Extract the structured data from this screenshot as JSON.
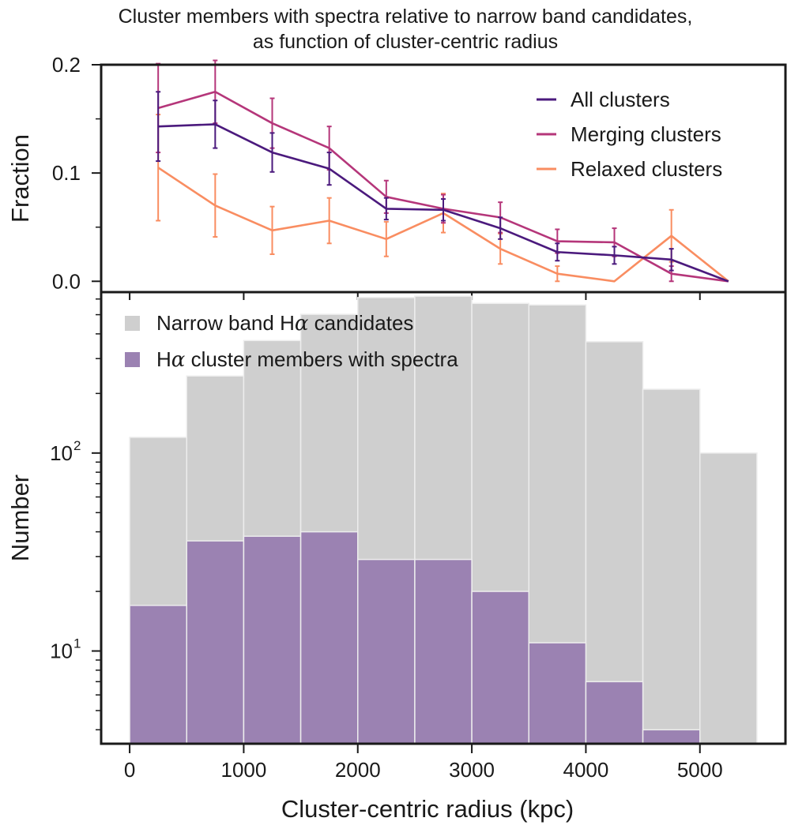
{
  "title": {
    "line1": "Cluster members with spectra relative to narrow band candidates,",
    "line2": "as function of cluster-centric radius"
  },
  "chart_data": [
    {
      "type": "line",
      "panel": "top",
      "ylabel": "Fraction",
      "xlabel": "",
      "xlim": [
        -250,
        5750
      ],
      "ylim": [
        -0.01,
        0.2
      ],
      "yticks": [
        0.0,
        0.1,
        0.2
      ],
      "ytick_labels": [
        "0.0",
        "0.1",
        "0.2"
      ],
      "legend_position": "top-right",
      "x": [
        250,
        750,
        1250,
        1750,
        2250,
        2750,
        3250,
        3750,
        4250,
        4750,
        5250
      ],
      "series": [
        {
          "name": "All clusters",
          "color": "#4b1a7d",
          "values": [
            0.143,
            0.145,
            0.119,
            0.104,
            0.067,
            0.066,
            0.049,
            0.027,
            0.024,
            0.02,
            0.0
          ],
          "errors": [
            0.032,
            0.022,
            0.018,
            0.015,
            0.01,
            0.01,
            0.01,
            0.008,
            0.008,
            0.01,
            null
          ]
        },
        {
          "name": "Merging clusters",
          "color": "#b5367a",
          "values": [
            0.16,
            0.175,
            0.146,
            0.123,
            0.078,
            0.067,
            0.059,
            0.037,
            0.036,
            0.007,
            0.0
          ],
          "errors": [
            0.041,
            0.029,
            0.023,
            0.02,
            0.015,
            0.013,
            0.014,
            0.011,
            0.013,
            0.007,
            null
          ]
        },
        {
          "name": "Relaxed clusters",
          "color": "#f98d61",
          "values": [
            0.105,
            0.07,
            0.047,
            0.056,
            0.039,
            0.063,
            0.03,
            0.007,
            0.0,
            0.042,
            0.0
          ],
          "errors": [
            0.049,
            0.029,
            0.022,
            0.021,
            0.016,
            0.018,
            0.014,
            0.007,
            null,
            0.024,
            null
          ]
        }
      ]
    },
    {
      "type": "bar",
      "panel": "bottom",
      "ylabel": "Number",
      "xlabel": "Cluster-centric radius (kpc)",
      "yscale": "log",
      "xlim": [
        -250,
        5750
      ],
      "ylim": [
        3.4,
        650
      ],
      "xticks": [
        0,
        1000,
        2000,
        3000,
        4000,
        5000
      ],
      "xtick_labels": [
        "0",
        "1000",
        "2000",
        "3000",
        "4000",
        "5000"
      ],
      "yticks_major": [
        10,
        100
      ],
      "ytick_labels": [
        "10",
        "10"
      ],
      "ytick_exponents": [
        "1",
        "2"
      ],
      "legend_position": "top-left",
      "bin_edges": [
        0,
        500,
        1000,
        1500,
        2000,
        2500,
        3000,
        3500,
        4000,
        4500,
        5000,
        5500
      ],
      "series": [
        {
          "name": "Narrow band H",
          "name_symbol": "α",
          "name_suffix": " candidates",
          "color": "#cfcfcf",
          "values": [
            120,
            245,
            370,
            502,
            610,
            620,
            570,
            560,
            365,
            210,
            100
          ]
        },
        {
          "name": "H",
          "name_symbol": "α",
          "name_suffix": " cluster members with spectra",
          "color": "#9b82b2",
          "values": [
            17,
            36,
            38,
            40,
            29,
            29,
            20,
            11,
            7,
            4,
            0
          ]
        }
      ]
    }
  ]
}
